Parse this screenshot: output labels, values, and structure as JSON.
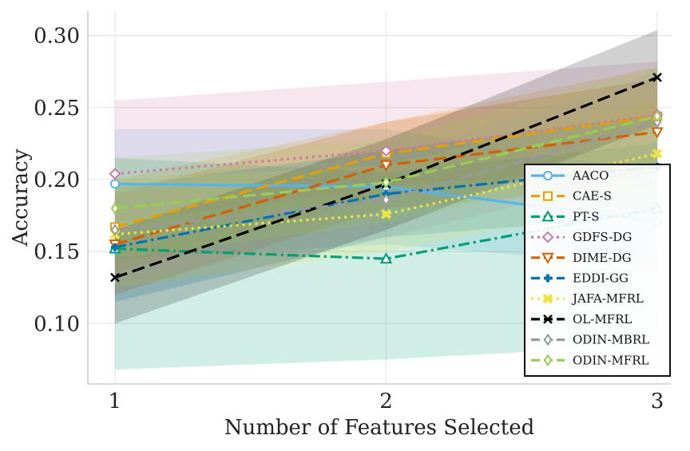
{
  "chart_data": {
    "type": "line",
    "title": "",
    "xlabel": "Number of Features Selected",
    "ylabel": "Accuracy",
    "x": [
      1,
      2,
      3
    ],
    "x_ticks": [
      "1",
      "2",
      "3"
    ],
    "y_ticks": [
      "0.10",
      "0.15",
      "0.20",
      "0.25",
      "0.30"
    ],
    "xlim": [
      0.9,
      3.05
    ],
    "ylim": [
      0.058,
      0.317
    ],
    "grid": true,
    "legend_position": "lower right",
    "series": [
      {
        "name": "AACO",
        "values": [
          0.197,
          0.195,
          0.171
        ],
        "lower": [
          0.145,
          0.155,
          0.14
        ],
        "upper": [
          0.235,
          0.235,
          0.205
        ],
        "color": "#56B4E9",
        "dash": "solid",
        "marker": "circle"
      },
      {
        "name": "CAE-S",
        "values": [
          0.167,
          0.218,
          0.244
        ],
        "lower": [
          0.135,
          0.19,
          0.205
        ],
        "upper": [
          0.2,
          0.24,
          0.278
        ],
        "color": "#E69F00",
        "dash": "dash",
        "marker": "square"
      },
      {
        "name": "PT-S",
        "values": [
          0.152,
          0.145,
          0.18
        ],
        "lower": [
          0.068,
          0.075,
          0.085
        ],
        "upper": [
          0.215,
          0.205,
          0.225
        ],
        "color": "#009E73",
        "dash": "dashdot",
        "marker": "triangle-up"
      },
      {
        "name": "GDFS-DG",
        "values": [
          0.204,
          0.22,
          0.245
        ],
        "lower": [
          0.17,
          0.195,
          0.21
        ],
        "upper": [
          0.255,
          0.268,
          0.282
        ],
        "color": "#CC79A7",
        "dash": "dot",
        "marker": "diamond"
      },
      {
        "name": "DIME-DG",
        "values": [
          0.155,
          0.21,
          0.233
        ],
        "lower": [
          0.12,
          0.18,
          0.195
        ],
        "upper": [
          0.19,
          0.24,
          0.27
        ],
        "color": "#D55E00",
        "dash": "dash",
        "marker": "triangle-down"
      },
      {
        "name": "EDDI-GG",
        "values": [
          0.153,
          0.19,
          0.209
        ],
        "lower": [
          0.115,
          0.16,
          0.175
        ],
        "upper": [
          0.195,
          0.22,
          0.245
        ],
        "color": "#0072B2",
        "dash": "dashdot",
        "marker": "plus"
      },
      {
        "name": "JAFA-MFRL",
        "values": [
          0.162,
          0.176,
          0.218
        ],
        "lower": [
          0.125,
          0.15,
          0.185
        ],
        "upper": [
          0.2,
          0.21,
          0.255
        ],
        "color": "#F0E442",
        "dash": "dot",
        "marker": "x-thick"
      },
      {
        "name": "OL-MFRL",
        "values": [
          0.132,
          0.197,
          0.271
        ],
        "lower": [
          0.1,
          0.165,
          0.238
        ],
        "upper": [
          0.165,
          0.228,
          0.304
        ],
        "color": "#000000",
        "dash": "dash",
        "marker": "x"
      },
      {
        "name": "ODIN-MBRL",
        "values": [
          0.165,
          0.186,
          0.24
        ],
        "lower": [
          0.13,
          0.16,
          0.205
        ],
        "upper": [
          0.2,
          0.215,
          0.275
        ],
        "color": "#999999",
        "dash": "dash",
        "marker": "thin-diamond"
      },
      {
        "name": "ODIN-MFRL",
        "values": [
          0.18,
          0.198,
          0.244
        ],
        "lower": [
          0.145,
          0.17,
          0.21
        ],
        "upper": [
          0.215,
          0.228,
          0.278
        ],
        "color": "#99CC55",
        "dash": "dash",
        "marker": "thin-diamond"
      }
    ]
  }
}
